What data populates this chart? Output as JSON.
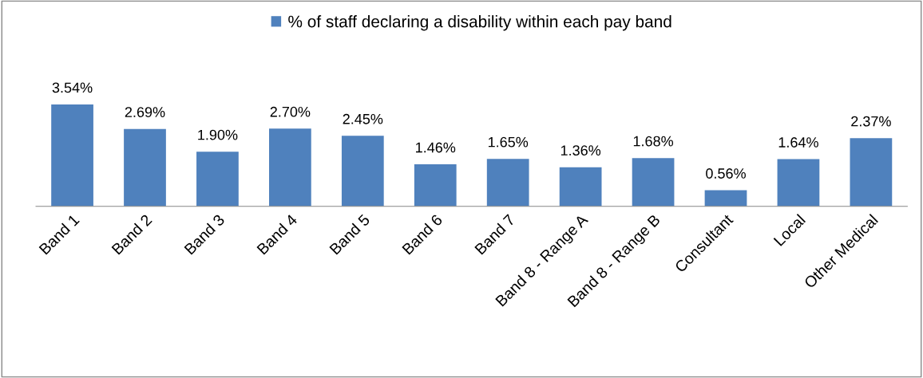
{
  "chart_data": {
    "type": "bar",
    "categories": [
      "Band 1",
      "Band 2",
      "Band 3",
      "Band 4",
      "Band 5",
      "Band 6",
      "Band 7",
      "Band 8 - Range A",
      "Band 8 - Range B",
      "Consultant",
      "Local",
      "Other Medical"
    ],
    "series": [
      {
        "name": "% of staff declaring a disability within each pay band",
        "color": "#4f81bd",
        "values": [
          3.54,
          2.69,
          1.9,
          2.7,
          2.45,
          1.46,
          1.65,
          1.36,
          1.68,
          0.56,
          1.64,
          2.37
        ],
        "value_labels": [
          "3.54%",
          "2.69%",
          "1.90%",
          "2.70%",
          "2.45%",
          "1.46%",
          "1.65%",
          "1.36%",
          "1.68%",
          "0.56%",
          "1.64%",
          "2.37%"
        ]
      }
    ],
    "legend": "top",
    "grid": false,
    "tick_labels": "x"
  }
}
